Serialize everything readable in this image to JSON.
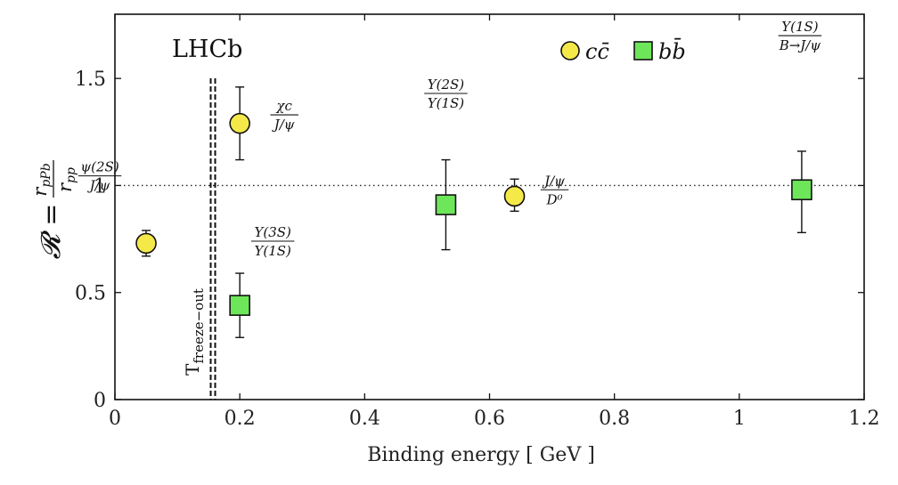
{
  "chart_data": {
    "type": "scatter",
    "xlabel": "Binding energy [ GeV ]",
    "ylabel": "R = r_pPb / r_pp",
    "ylabel_parts": {
      "lhs": "𝓡 =",
      "num": "r",
      "num_sub": "pPb",
      "den": "r",
      "den_sub": "pp"
    },
    "xlim": [
      0,
      1.2
    ],
    "ylim": [
      0,
      1.8
    ],
    "xticks": [
      0,
      0.2,
      0.4,
      0.6,
      0.8,
      1,
      1.2
    ],
    "xtick_labels": [
      "0",
      "0.2",
      "0.4",
      "0.6",
      "0.8",
      "1",
      "1.2"
    ],
    "yticks": [
      0,
      0.5,
      1,
      1.5
    ],
    "ytick_labels": [
      "0",
      "0.5",
      "1",
      "1.5"
    ],
    "experiment_label": "LHCb",
    "reference_line": {
      "y": 1,
      "style": "dotted"
    },
    "freeze_out": {
      "x": 0.157,
      "label": "T",
      "label_sub": "freeze−out"
    },
    "legend": [
      {
        "name": "cc̄",
        "marker": "circle",
        "color": "#f5e94a"
      },
      {
        "name": "bb̄",
        "marker": "square",
        "color": "#6ee65a"
      }
    ],
    "series": [
      {
        "name": "cc̄",
        "marker": "circle",
        "points": [
          {
            "x": 0.05,
            "y": 0.73,
            "ylow": 0.67,
            "yhigh": 0.79,
            "num": "ψ(2S)",
            "den": "J/ψ"
          },
          {
            "x": 0.2,
            "y": 1.29,
            "ylow": 1.12,
            "yhigh": 1.46,
            "num": "χc",
            "den": "J/ψ"
          },
          {
            "x": 0.64,
            "y": 0.95,
            "ylow": 0.88,
            "yhigh": 1.03,
            "num": "J/ψ",
            "den": "D⁰"
          }
        ]
      },
      {
        "name": "bb̄",
        "marker": "square",
        "points": [
          {
            "x": 0.2,
            "y": 0.44,
            "ylow": 0.29,
            "yhigh": 0.59,
            "num": "Υ(3S)",
            "den": "Υ(1S)"
          },
          {
            "x": 0.53,
            "y": 0.91,
            "ylow": 0.7,
            "yhigh": 1.12,
            "num": "Υ(2S)",
            "den": "Υ(1S)"
          },
          {
            "x": 1.1,
            "y": 0.98,
            "ylow": 0.78,
            "yhigh": 1.16,
            "num": "Υ(1S)",
            "den": "B→J/ψ"
          }
        ]
      }
    ]
  }
}
